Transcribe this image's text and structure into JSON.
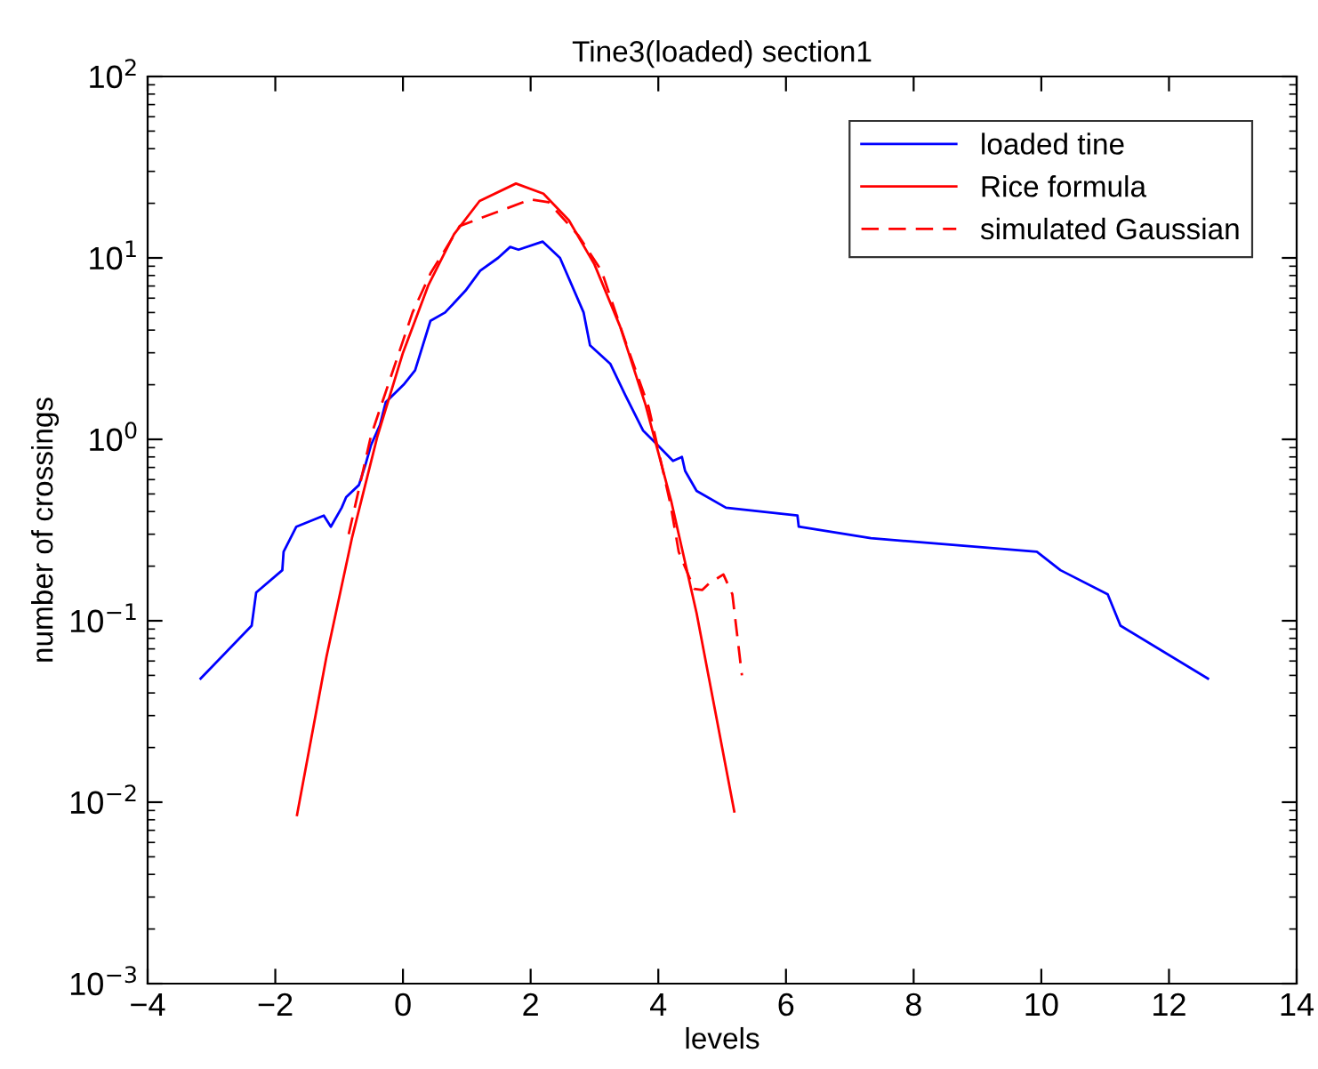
{
  "chart_data": {
    "type": "line",
    "title": "Tine3(loaded) section1",
    "xlabel": "levels",
    "ylabel": "number of crossings",
    "log": "y",
    "xlim": [
      -4,
      14
    ],
    "ylim": [
      0.001,
      100
    ],
    "xticks": [
      -4,
      -2,
      0,
      2,
      4,
      6,
      8,
      10,
      12,
      14
    ],
    "yticks": [
      {
        "value": 0.001,
        "label": "10$^{−3}$"
      },
      {
        "value": 0.01,
        "label": "10$^{−2}$"
      },
      {
        "value": 0.1,
        "label": "10$^{−1}$"
      },
      {
        "value": 1,
        "label": "10$^{0}$"
      },
      {
        "value": 10,
        "label": "10$^{1}$"
      },
      {
        "value": 100,
        "label": "10$^{2}$"
      }
    ],
    "grid": false,
    "legend": "top right",
    "marker": "none",
    "series": [
      {
        "name": "loaded tine",
        "color": "#0000ff",
        "line_style": "solid",
        "x": [
          -3.17,
          -2.37,
          -2.3,
          -1.89,
          -1.87,
          -1.67,
          -1.24,
          -1.13,
          -0.96,
          -0.89,
          -0.69,
          -0.59,
          -0.5,
          -0.36,
          -0.27,
          0.01,
          0.19,
          0.43,
          0.66,
          0.98,
          1.21,
          1.49,
          1.68,
          1.81,
          2.19,
          2.46,
          2.83,
          2.93,
          3.25,
          3.48,
          3.76,
          3.99,
          4.23,
          4.37,
          4.42,
          4.6,
          5.06,
          6.18,
          6.2,
          7.33,
          9.93,
          10.3,
          11.04,
          11.24,
          12.61
        ],
        "values": [
          0.048,
          0.094,
          0.143,
          0.19,
          0.24,
          0.33,
          0.38,
          0.33,
          0.42,
          0.48,
          0.56,
          0.72,
          0.93,
          1.2,
          1.6,
          2.0,
          2.4,
          4.5,
          5.0,
          6.6,
          8.5,
          10,
          11.5,
          11.1,
          12.3,
          10,
          5.0,
          3.3,
          2.6,
          1.76,
          1.12,
          0.93,
          0.76,
          0.8,
          0.67,
          0.52,
          0.42,
          0.38,
          0.33,
          0.285,
          0.24,
          0.19,
          0.14,
          0.094,
          0.048
        ]
      },
      {
        "name": "Rice formula",
        "color": "#ff0000",
        "line_style": "solid",
        "x": [
          -1.66,
          -1.2,
          -0.8,
          -0.4,
          0,
          0.4,
          0.8,
          1.2,
          1.77,
          2.2,
          2.6,
          3.0,
          3.4,
          3.8,
          4.2,
          4.6,
          5.19
        ],
        "values": [
          0.0085,
          0.063,
          0.285,
          1.04,
          3.0,
          7.1,
          13.5,
          20.6,
          25.7,
          22.6,
          16.1,
          9.2,
          4.2,
          1.55,
          0.46,
          0.11,
          0.0089
        ]
      },
      {
        "name": "simulated Gaussian",
        "color": "#ff0000",
        "line_style": "dashed",
        "x": [
          -0.85,
          -0.5,
          0.15,
          0.43,
          0.89,
          2.0,
          2.28,
          2.74,
          3.11,
          3.48,
          3.85,
          4.19,
          4.32,
          4.56,
          4.69,
          4.79,
          5.02,
          5.16,
          5.31
        ],
        "values": [
          0.3,
          1.05,
          5.0,
          8.2,
          15,
          21,
          20.3,
          13.4,
          8.5,
          3.5,
          1.5,
          0.44,
          0.24,
          0.15,
          0.148,
          0.16,
          0.18,
          0.14,
          0.05
        ]
      }
    ]
  }
}
